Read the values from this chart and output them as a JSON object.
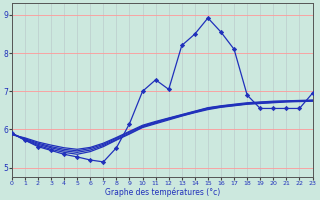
{
  "xlabel": "Graphe des températures (°c)",
  "x_hours": [
    0,
    1,
    2,
    3,
    4,
    5,
    6,
    7,
    8,
    9,
    10,
    11,
    12,
    13,
    14,
    15,
    16,
    17,
    18,
    19,
    20,
    21,
    22,
    23
  ],
  "temp_main": [
    5.9,
    5.72,
    5.55,
    5.45,
    5.35,
    5.28,
    5.2,
    5.15,
    5.52,
    6.15,
    7.0,
    7.3,
    7.05,
    8.2,
    8.5,
    8.92,
    8.55,
    8.1,
    6.9,
    6.55,
    6.55,
    6.55,
    6.55,
    6.95
  ],
  "line1": [
    5.9,
    5.72,
    5.58,
    5.48,
    5.4,
    5.35,
    5.42,
    5.55,
    5.72,
    5.88,
    6.05,
    6.15,
    6.25,
    6.35,
    6.44,
    6.52,
    6.58,
    6.62,
    6.66,
    6.68,
    6.7,
    6.72,
    6.73,
    6.74
  ],
  "line2": [
    5.9,
    5.74,
    5.61,
    5.52,
    5.44,
    5.4,
    5.46,
    5.58,
    5.74,
    5.9,
    6.07,
    6.17,
    6.27,
    6.36,
    6.45,
    6.54,
    6.59,
    6.63,
    6.67,
    6.69,
    6.71,
    6.73,
    6.74,
    6.75
  ],
  "line3": [
    5.88,
    5.76,
    5.64,
    5.55,
    5.48,
    5.44,
    5.5,
    5.61,
    5.77,
    5.93,
    6.09,
    6.19,
    6.29,
    6.38,
    6.47,
    6.56,
    6.61,
    6.65,
    6.68,
    6.71,
    6.73,
    6.74,
    6.75,
    6.76
  ],
  "line4": [
    5.86,
    5.78,
    5.67,
    5.59,
    5.52,
    5.48,
    5.53,
    5.64,
    5.79,
    5.95,
    6.11,
    6.21,
    6.3,
    6.39,
    6.48,
    6.57,
    6.62,
    6.66,
    6.7,
    6.72,
    6.74,
    6.75,
    6.76,
    6.77
  ],
  "ylim": [
    4.75,
    9.3
  ],
  "xlim": [
    0,
    23
  ],
  "yticks": [
    5,
    6,
    7,
    8,
    9
  ],
  "xticks": [
    0,
    1,
    2,
    3,
    4,
    5,
    6,
    7,
    8,
    9,
    10,
    11,
    12,
    13,
    14,
    15,
    16,
    17,
    18,
    19,
    20,
    21,
    22,
    23
  ],
  "line_color": "#2030bb",
  "bg_color": "#cce8de",
  "grid_color_major": "#ff9999",
  "grid_color_minor": "#bbcccc",
  "marker": "D",
  "markersize": 2.2,
  "linewidth": 0.9
}
